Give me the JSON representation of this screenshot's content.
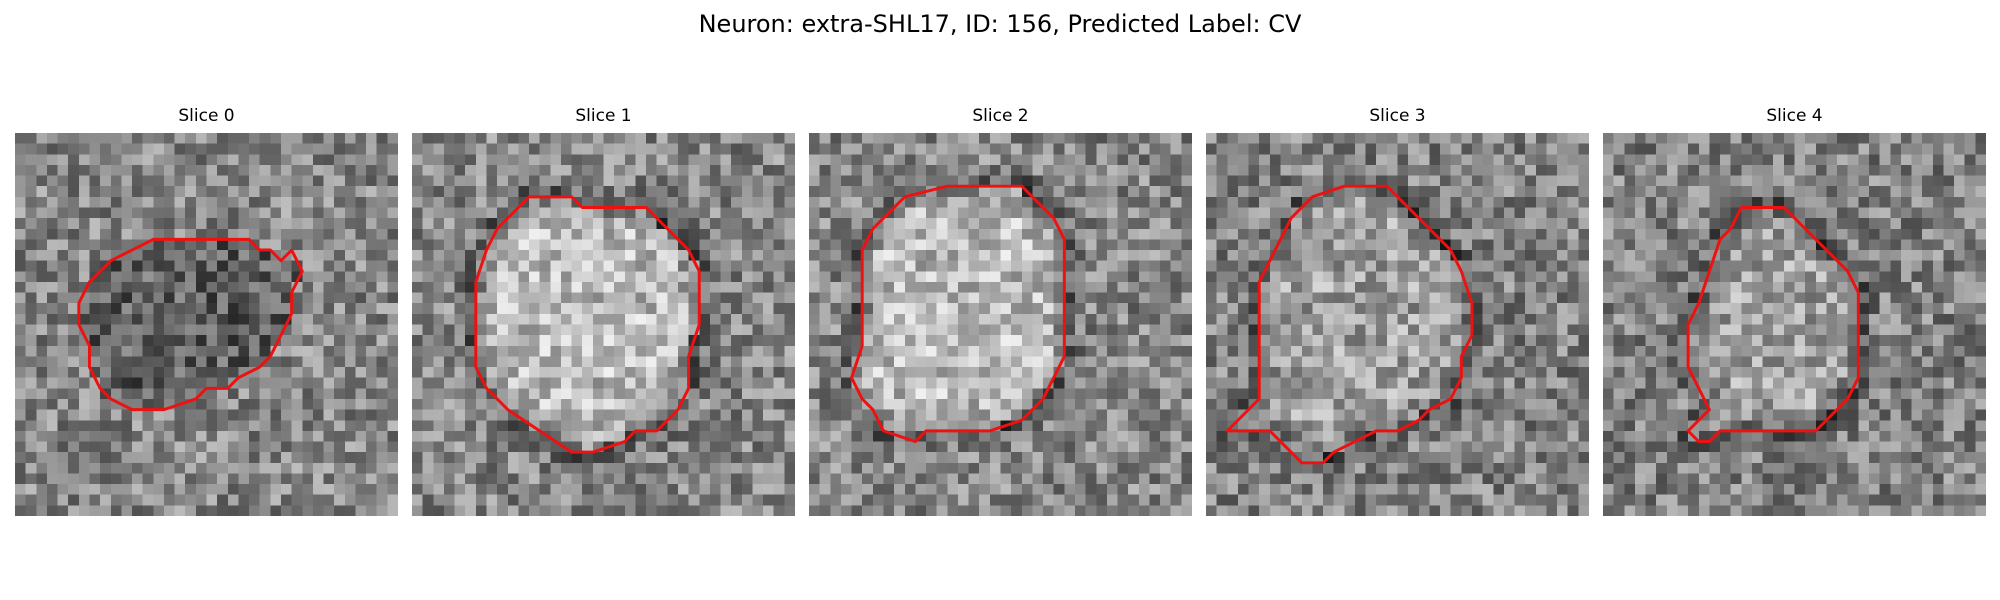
{
  "figure": {
    "title": "Neuron: extra-SHL17, ID: 156, Predicted Label: CV"
  },
  "colors": {
    "contour": "#ee1111",
    "background": "#ffffff"
  },
  "panels": [
    {
      "label": "Slice 0",
      "center_brightness": "dark",
      "contour": [
        [
          13,
          10
        ],
        [
          22,
          10
        ],
        [
          23,
          11
        ],
        [
          24,
          11
        ],
        [
          25,
          12
        ],
        [
          26,
          11
        ],
        [
          27,
          13
        ],
        [
          26,
          15
        ],
        [
          26,
          17
        ],
        [
          25,
          19
        ],
        [
          24,
          21
        ],
        [
          23,
          22
        ],
        [
          21,
          23
        ],
        [
          20,
          24
        ],
        [
          18,
          24
        ],
        [
          17,
          25
        ],
        [
          14,
          26
        ],
        [
          11,
          26
        ],
        [
          9,
          25
        ],
        [
          8,
          24
        ],
        [
          7,
          22
        ],
        [
          7,
          20
        ],
        [
          6,
          18
        ],
        [
          6,
          16
        ],
        [
          7,
          14
        ],
        [
          8,
          13
        ],
        [
          9,
          12
        ],
        [
          11,
          11
        ]
      ]
    },
    {
      "label": "Slice 1",
      "center_brightness": "bright",
      "contour": [
        [
          11,
          6
        ],
        [
          15,
          6
        ],
        [
          16,
          7
        ],
        [
          22,
          7
        ],
        [
          23,
          8
        ],
        [
          24,
          9
        ],
        [
          25,
          10
        ],
        [
          26,
          11
        ],
        [
          27,
          13
        ],
        [
          27,
          18
        ],
        [
          26,
          21
        ],
        [
          26,
          24
        ],
        [
          25,
          26
        ],
        [
          24,
          27
        ],
        [
          23,
          28
        ],
        [
          21,
          28
        ],
        [
          20,
          29
        ],
        [
          17,
          30
        ],
        [
          15,
          30
        ],
        [
          12,
          28
        ],
        [
          9,
          26
        ],
        [
          7,
          24
        ],
        [
          6,
          22
        ],
        [
          6,
          18
        ],
        [
          6,
          14
        ],
        [
          7,
          11
        ],
        [
          8,
          9
        ],
        [
          9,
          8
        ],
        [
          10,
          7
        ]
      ]
    },
    {
      "label": "Slice 2",
      "center_brightness": "bright",
      "contour": [
        [
          9,
          6
        ],
        [
          13,
          5
        ],
        [
          18,
          5
        ],
        [
          20,
          5
        ],
        [
          21,
          6
        ],
        [
          22,
          7
        ],
        [
          23,
          8
        ],
        [
          24,
          10
        ],
        [
          24,
          13
        ],
        [
          24,
          17
        ],
        [
          24,
          21
        ],
        [
          23,
          23
        ],
        [
          22,
          25
        ],
        [
          21,
          26
        ],
        [
          20,
          27
        ],
        [
          17,
          28
        ],
        [
          13,
          28
        ],
        [
          11,
          28
        ],
        [
          10,
          29
        ],
        [
          7,
          28
        ],
        [
          6,
          26
        ],
        [
          5,
          25
        ],
        [
          4,
          23
        ],
        [
          5,
          20
        ],
        [
          5,
          15
        ],
        [
          5,
          11
        ],
        [
          6,
          9
        ],
        [
          7,
          8
        ]
      ]
    },
    {
      "label": "Slice 3",
      "center_brightness": "mixed",
      "contour": [
        [
          10,
          6
        ],
        [
          13,
          5
        ],
        [
          17,
          5
        ],
        [
          18,
          6
        ],
        [
          19,
          7
        ],
        [
          20,
          8
        ],
        [
          21,
          9
        ],
        [
          22,
          10
        ],
        [
          23,
          11
        ],
        [
          24,
          13
        ],
        [
          25,
          16
        ],
        [
          25,
          19
        ],
        [
          24,
          21
        ],
        [
          24,
          23
        ],
        [
          23,
          25
        ],
        [
          21,
          26
        ],
        [
          20,
          27
        ],
        [
          18,
          28
        ],
        [
          16,
          28
        ],
        [
          14,
          29
        ],
        [
          12,
          30
        ],
        [
          11,
          31
        ],
        [
          9,
          31
        ],
        [
          8,
          30
        ],
        [
          6,
          28
        ],
        [
          4,
          28
        ],
        [
          2,
          28
        ],
        [
          3,
          27
        ],
        [
          5,
          25
        ],
        [
          5,
          22
        ],
        [
          5,
          18
        ],
        [
          5,
          14
        ],
        [
          6,
          12
        ],
        [
          7,
          10
        ],
        [
          8,
          8
        ],
        [
          9,
          7
        ]
      ]
    },
    {
      "label": "Slice 4",
      "center_brightness": "mixed",
      "contour": [
        [
          13,
          7
        ],
        [
          17,
          7
        ],
        [
          18,
          8
        ],
        [
          19,
          9
        ],
        [
          20,
          10
        ],
        [
          21,
          11
        ],
        [
          22,
          12
        ],
        [
          23,
          13
        ],
        [
          24,
          15
        ],
        [
          24,
          19
        ],
        [
          24,
          23
        ],
        [
          23,
          25
        ],
        [
          22,
          26
        ],
        [
          21,
          27
        ],
        [
          20,
          28
        ],
        [
          17,
          28
        ],
        [
          15,
          28
        ],
        [
          13,
          28
        ],
        [
          11,
          28
        ],
        [
          10,
          29
        ],
        [
          9,
          29
        ],
        [
          8,
          28
        ],
        [
          9,
          27
        ],
        [
          10,
          26
        ],
        [
          9,
          24
        ],
        [
          8,
          22
        ],
        [
          8,
          18
        ],
        [
          9,
          16
        ],
        [
          10,
          13
        ],
        [
          11,
          10
        ],
        [
          12,
          9
        ]
      ]
    }
  ]
}
